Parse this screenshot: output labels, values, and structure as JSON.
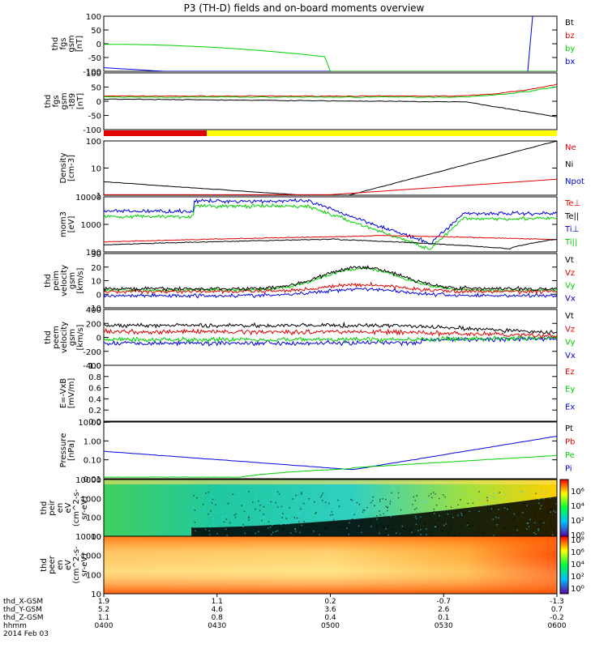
{
  "title": "P3 (TH-D) fields and on-board moments overview",
  "colors": {
    "black": "#000000",
    "red": "#e00000",
    "green": "#00d000",
    "blue": "#0000e0",
    "yellow": "#ffff00"
  },
  "chart_data": [
    {
      "type": "line",
      "ylabel": [
        "thd",
        "fgs",
        "gsm",
        "[nT]"
      ],
      "yticks": [
        "100",
        "50",
        "0",
        "-50",
        "-100"
      ],
      "ylim": [
        -100,
        100
      ],
      "series": [
        {
          "name": "Bt",
          "color": "#000000"
        },
        {
          "name": "bz",
          "color": "#e00000"
        },
        {
          "name": "by",
          "color": "#00d000"
        },
        {
          "name": "bx",
          "color": "#0000e0"
        }
      ]
    },
    {
      "type": "line",
      "ylabel": [
        "thd",
        "fgs",
        "gsm",
        "-t89",
        "[nT]"
      ],
      "yticks": [
        "100",
        "50",
        "0",
        "-50",
        "-100"
      ],
      "ylim": [
        -130,
        100
      ]
    },
    {
      "type": "bar",
      "name": "mode bar",
      "colors": [
        "#e00000",
        "#ffff00"
      ]
    },
    {
      "type": "line",
      "ylabel": [
        "Density",
        "[cm-3]"
      ],
      "yticks": [
        "100",
        "10",
        "1"
      ],
      "log": true,
      "series": [
        {
          "name": "Ne",
          "color": "#e00000"
        },
        {
          "name": "Ni",
          "color": "#000000"
        },
        {
          "name": "Npot",
          "color": "#0000e0"
        }
      ]
    },
    {
      "type": "line",
      "ylabel": [
        "mom3",
        "[eV]"
      ],
      "yticks": [
        "10000",
        "1000",
        "100"
      ],
      "log": true,
      "series": [
        {
          "name": "Te⊥",
          "color": "#e00000"
        },
        {
          "name": "Te||",
          "color": "#000000"
        },
        {
          "name": "Ti⊥",
          "color": "#0000e0"
        },
        {
          "name": "Ti||",
          "color": "#00d000"
        }
      ]
    },
    {
      "type": "line",
      "ylabel": [
        "thd",
        "peim",
        "velocity",
        "gsm",
        "[km/s]"
      ],
      "yticks": [
        "30",
        "20",
        "10",
        "0",
        "-10"
      ],
      "ylim": [
        -10,
        30
      ],
      "series": [
        {
          "name": "Vt",
          "color": "#000000"
        },
        {
          "name": "Vz",
          "color": "#e00000"
        },
        {
          "name": "Vy",
          "color": "#00d000"
        },
        {
          "name": "Vx",
          "color": "#0000e0"
        }
      ]
    },
    {
      "type": "line",
      "ylabel": [
        "thd",
        "peem",
        "velocity",
        "gsm",
        "[km/s]"
      ],
      "yticks": [
        "400",
        "200",
        "0",
        "-200",
        "-400"
      ],
      "ylim": [
        -400,
        400
      ],
      "series": [
        {
          "name": "Vt",
          "color": "#000000"
        },
        {
          "name": "Vz",
          "color": "#e00000"
        },
        {
          "name": "Vy",
          "color": "#00d000"
        },
        {
          "name": "Vx",
          "color": "#0000e0"
        }
      ]
    },
    {
      "type": "line",
      "ylabel": [
        "E=-VxB",
        "[mV/m]"
      ],
      "yticks": [
        "1.0",
        "0.8",
        "0.6",
        "0.4",
        "0.2",
        "0.0"
      ],
      "ylim": [
        0,
        1
      ],
      "series": [
        {
          "name": "Ez",
          "color": "#e00000"
        },
        {
          "name": "Ey",
          "color": "#00d000"
        },
        {
          "name": "Ex",
          "color": "#0000e0"
        }
      ]
    },
    {
      "type": "line",
      "ylabel": [
        "Pressure",
        "[nPa]"
      ],
      "yticks": [
        "10.00",
        "1.00",
        "0.10",
        "0.01"
      ],
      "log": true,
      "series": [
        {
          "name": "Pt",
          "color": "#000000"
        },
        {
          "name": "Pb",
          "color": "#e00000"
        },
        {
          "name": "Pe",
          "color": "#00d000"
        },
        {
          "name": "Pi",
          "color": "#0000e0"
        }
      ]
    },
    {
      "type": "heatmap",
      "ylabel": [
        "thd",
        "peir",
        "en",
        "eV",
        "(cm^2-s-",
        "sr-eV)"
      ],
      "yticks": [
        "10000",
        "1000",
        "100",
        "10"
      ],
      "colorbar": [
        "10⁶",
        "10⁴",
        "10²",
        "10⁰"
      ]
    },
    {
      "type": "heatmap",
      "ylabel": [
        "thd",
        "peer",
        "en",
        "eV",
        "(cm^2-s-",
        "sr-eV)"
      ],
      "yticks": [
        "10000",
        "1000",
        "100",
        "10"
      ],
      "colorbar": [
        "10⁸",
        "10⁶",
        "10⁴",
        "10²",
        "10⁰"
      ]
    }
  ],
  "xaxis": {
    "row_labels": [
      "thd_X-GSM",
      "thd_Y-GSM",
      "thd_Z-GSM",
      "hhmm",
      "2014 Feb 03"
    ],
    "ticks": [
      {
        "x": "1.9",
        "y": "5.2",
        "z": "1.1",
        "hhmm": "0400"
      },
      {
        "x": "1.1",
        "y": "4.6",
        "z": "0.8",
        "hhmm": "0430"
      },
      {
        "x": "0.2",
        "y": "3.6",
        "z": "0.4",
        "hhmm": "0500"
      },
      {
        "x": "-0.7",
        "y": "2.6",
        "z": "0.1",
        "hhmm": "0530"
      },
      {
        "x": "-1.3",
        "y": "0.7",
        "z": "-0.2",
        "hhmm": "0600"
      }
    ]
  }
}
